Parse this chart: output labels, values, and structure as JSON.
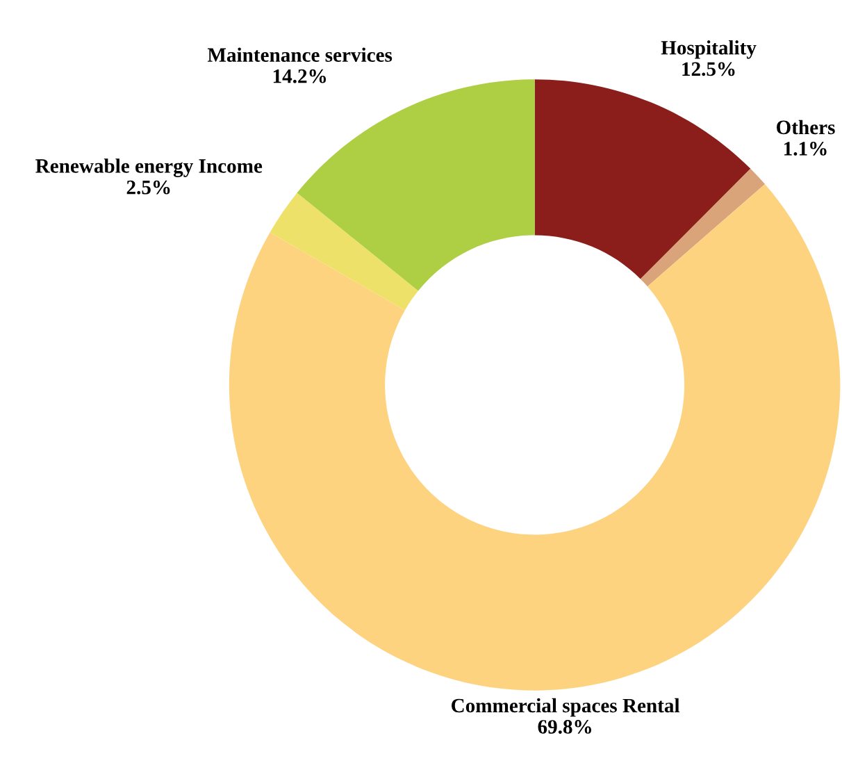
{
  "chart_data": {
    "type": "donut",
    "categories": [
      "Hospitality",
      "Others",
      "Commercial spaces Rental",
      "Renewable energy Income",
      "Maintenance services"
    ],
    "values": [
      12.5,
      1.1,
      69.8,
      2.5,
      14.2
    ],
    "value_labels": [
      "12.5%",
      "1.1%",
      "69.8%",
      "2.5%",
      "14.2%"
    ],
    "colors": [
      "#8b1e1a",
      "#d9a47a",
      "#fdd380",
      "#eee16a",
      "#aecf43"
    ],
    "legend": false
  }
}
